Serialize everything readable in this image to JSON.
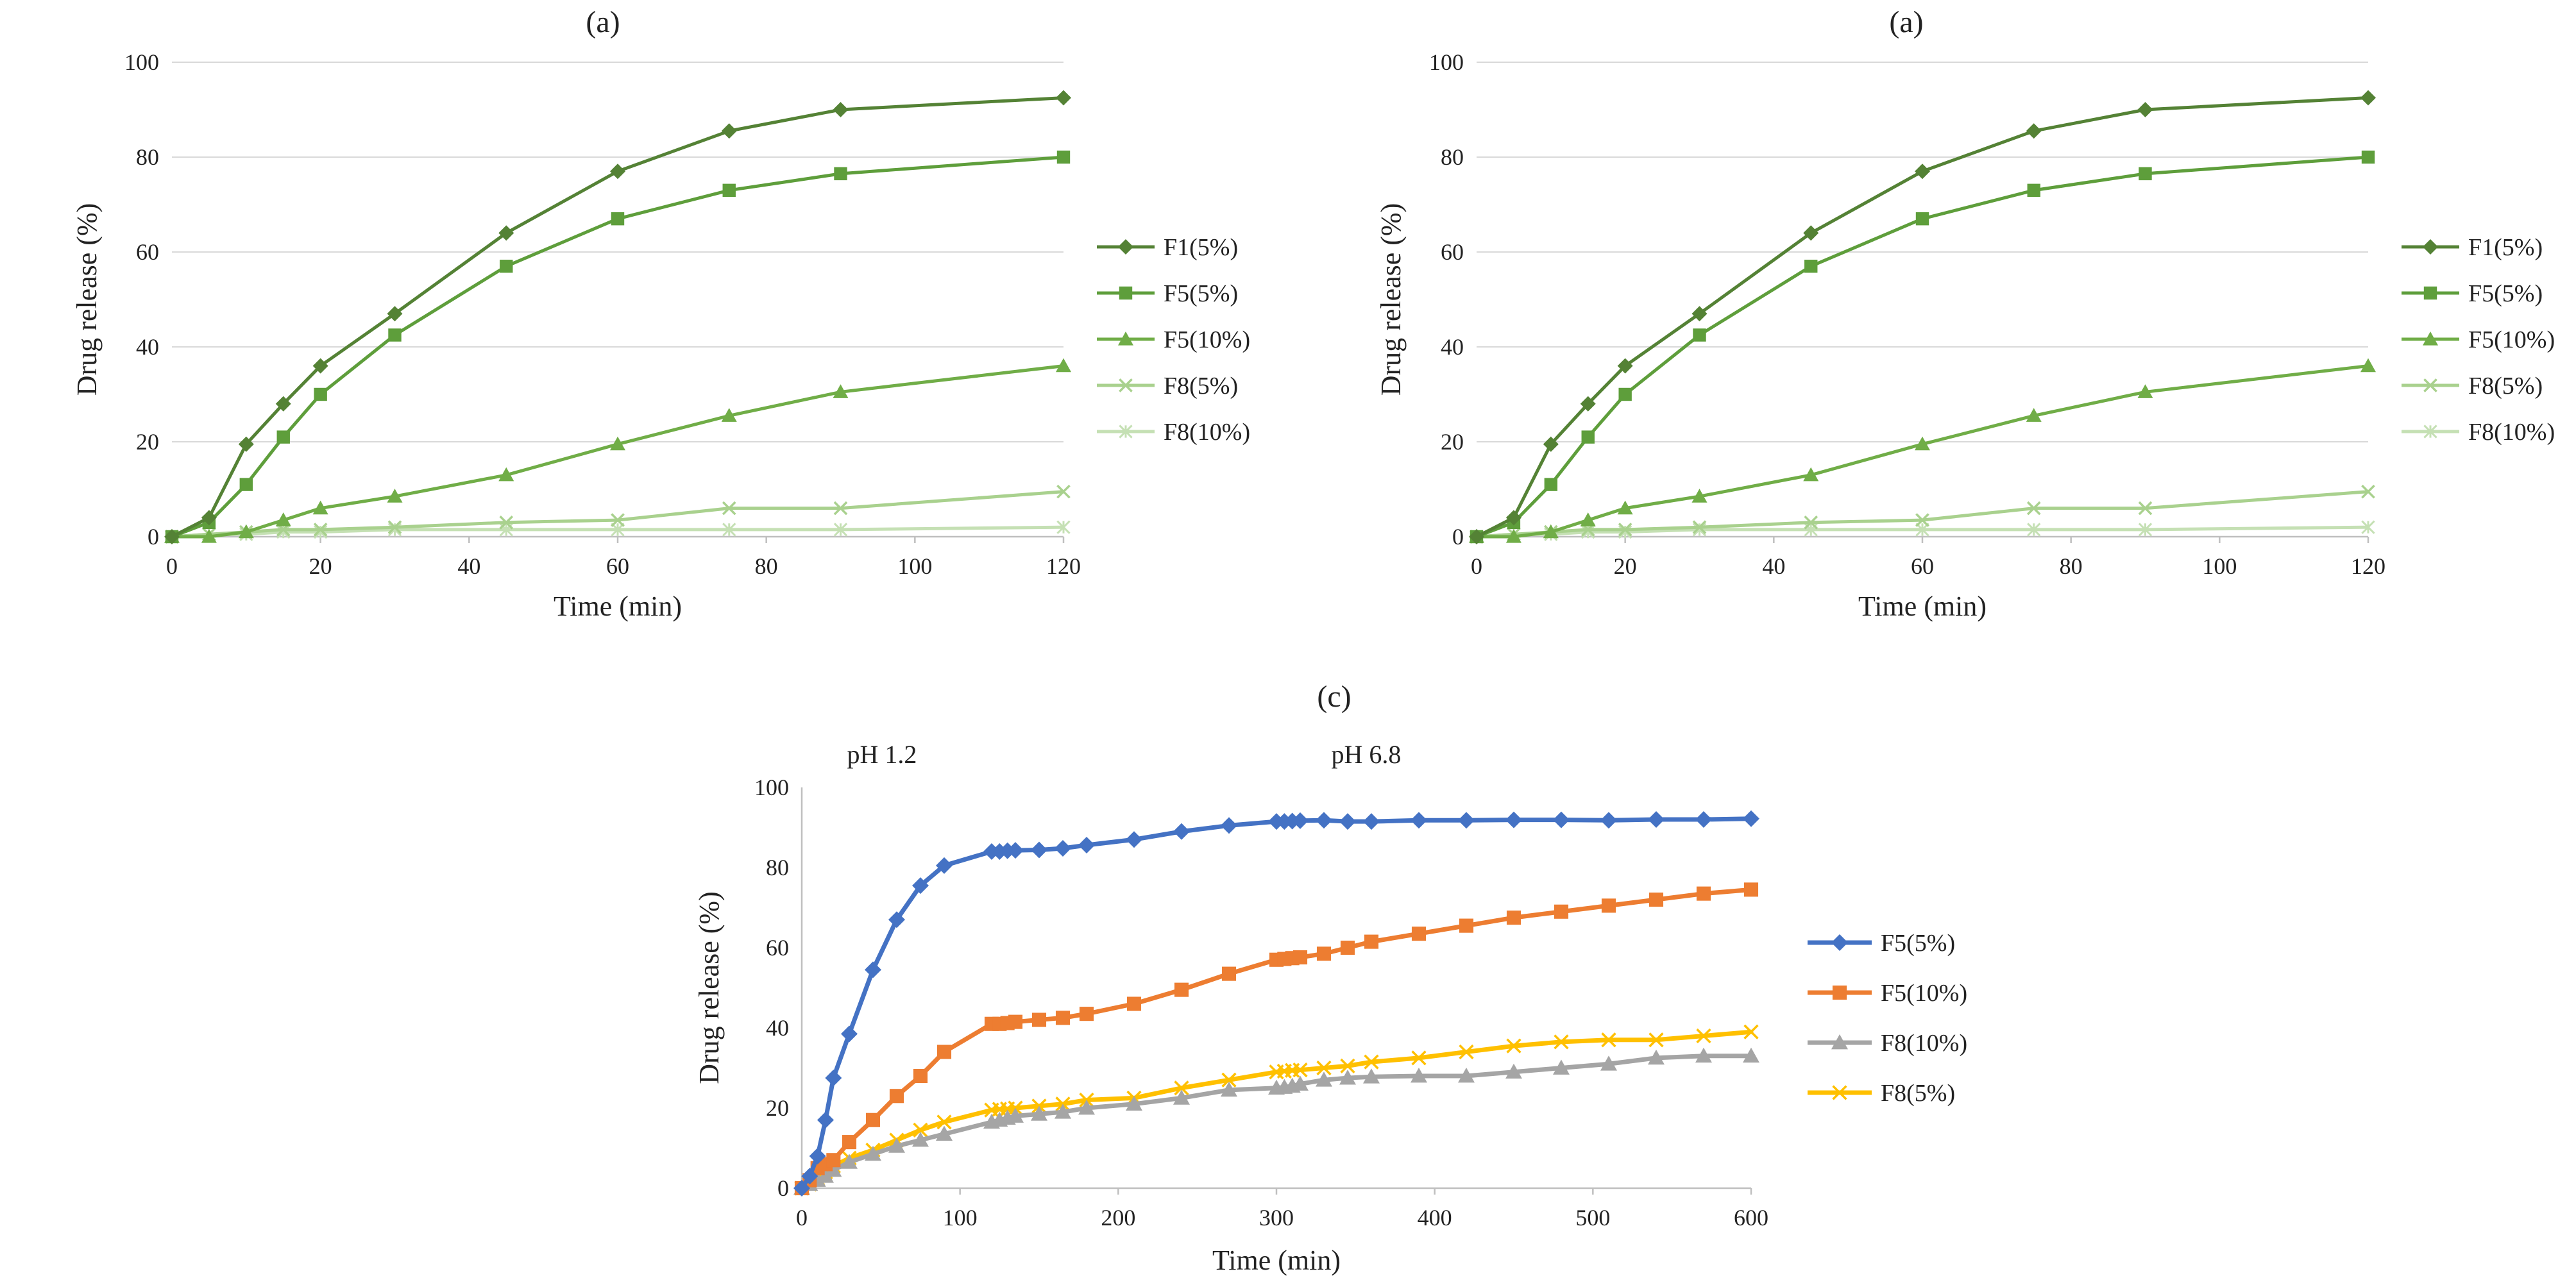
{
  "chart_data": [
    {
      "type": "line",
      "title": "(a)",
      "xlabel": "Time (min)",
      "ylabel": "Drug release (%)",
      "xlim": [
        0,
        120
      ],
      "ylim": [
        0,
        100
      ],
      "xticks": [
        0,
        20,
        40,
        60,
        80,
        100,
        120
      ],
      "yticks": [
        0,
        20,
        40,
        60,
        80,
        100
      ],
      "grid": true,
      "legend": "right",
      "x": [
        0,
        5,
        10,
        15,
        20,
        30,
        45,
        60,
        75,
        90,
        120
      ],
      "series": [
        {
          "name": "F1(5%)",
          "color": "#548235",
          "marker": "diamond",
          "values": [
            0,
            4,
            19.5,
            28,
            36,
            47,
            64,
            77,
            85.5,
            90,
            92.5
          ]
        },
        {
          "name": "F5(5%)",
          "color": "#5e9e3b",
          "marker": "square",
          "values": [
            0,
            3,
            11,
            21,
            30,
            42.5,
            57,
            67,
            73,
            76.5,
            80
          ]
        },
        {
          "name": "F5(10%)",
          "color": "#70ad47",
          "marker": "triangle",
          "values": [
            0,
            0,
            1,
            3.5,
            6,
            8.5,
            13,
            19.5,
            25.5,
            30.5,
            36
          ]
        },
        {
          "name": "F8(5%)",
          "color": "#a9d18e",
          "marker": "x",
          "values": [
            0,
            0.5,
            1,
            1.5,
            1.5,
            2,
            3,
            3.5,
            6,
            6,
            9.5
          ]
        },
        {
          "name": "F8(10%)",
          "color": "#c5e0b4",
          "marker": "star",
          "values": [
            0,
            0.5,
            0.5,
            1,
            1,
            1.5,
            1.5,
            1.5,
            1.5,
            1.5,
            2
          ]
        }
      ]
    },
    {
      "type": "line",
      "title": "(a)",
      "xlabel": "Time (min)",
      "ylabel": "Drug release (%)",
      "xlim": [
        0,
        120
      ],
      "ylim": [
        0,
        100
      ],
      "xticks": [
        0,
        20,
        40,
        60,
        80,
        100,
        120
      ],
      "yticks": [
        0,
        20,
        40,
        60,
        80,
        100
      ],
      "grid": true,
      "legend": "right",
      "x": [
        0,
        5,
        10,
        15,
        20,
        30,
        45,
        60,
        75,
        90,
        120
      ],
      "series": [
        {
          "name": "F1(5%)",
          "color": "#548235",
          "marker": "diamond",
          "values": [
            0,
            4,
            19.5,
            28,
            36,
            47,
            64,
            77,
            85.5,
            90,
            92.5
          ]
        },
        {
          "name": "F5(5%)",
          "color": "#5e9e3b",
          "marker": "square",
          "values": [
            0,
            3,
            11,
            21,
            30,
            42.5,
            57,
            67,
            73,
            76.5,
            80
          ]
        },
        {
          "name": "F5(10%)",
          "color": "#70ad47",
          "marker": "triangle",
          "values": [
            0,
            0,
            1,
            3.5,
            6,
            8.5,
            13,
            19.5,
            25.5,
            30.5,
            36
          ]
        },
        {
          "name": "F8(5%)",
          "color": "#a9d18e",
          "marker": "x",
          "values": [
            0,
            0.5,
            1,
            1.5,
            1.5,
            2,
            3,
            3.5,
            6,
            6,
            9.5
          ]
        },
        {
          "name": "F8(10%)",
          "color": "#c5e0b4",
          "marker": "star",
          "values": [
            0,
            0.5,
            0.5,
            1,
            1,
            1.5,
            1.5,
            1.5,
            1.5,
            1.5,
            2
          ]
        }
      ]
    },
    {
      "type": "line",
      "title": "(c)",
      "xlabel": "Time (min)",
      "ylabel": "Drug release (%)",
      "xlim": [
        0,
        600
      ],
      "ylim": [
        0,
        100
      ],
      "xticks": [
        0,
        100,
        200,
        300,
        400,
        500,
        600
      ],
      "yticks": [
        0,
        20,
        40,
        60,
        80,
        100
      ],
      "grid": false,
      "legend": "right",
      "annotations": [
        "pH 1.2",
        "pH 6.8"
      ],
      "x": [
        0,
        5,
        10,
        15,
        20,
        30,
        45,
        60,
        75,
        90,
        120,
        125,
        130,
        135,
        150,
        165,
        180,
        210,
        240,
        270,
        300,
        305,
        310,
        315,
        330,
        345,
        360,
        390,
        420,
        450,
        480,
        510,
        540,
        570,
        600
      ],
      "series": [
        {
          "name": "F5(5%)",
          "color": "#4472c4",
          "marker": "diamond",
          "values": [
            0,
            3,
            8,
            17,
            27.5,
            38.5,
            54.5,
            67,
            75.5,
            80.5,
            84,
            84,
            84.2,
            84.3,
            84.4,
            84.8,
            85.6,
            87,
            89,
            90.5,
            91.5,
            91.5,
            91.6,
            91.7,
            91.8,
            91.5,
            91.5,
            91.8,
            91.8,
            91.9,
            91.9,
            91.8,
            92,
            92,
            92.2
          ]
        },
        {
          "name": "F5(10%)",
          "color": "#ed7d31",
          "marker": "square",
          "values": [
            0,
            2,
            5,
            6,
            7,
            11.5,
            17,
            23,
            28,
            34,
            41,
            41,
            41.2,
            41.5,
            42,
            42.5,
            43.5,
            46,
            49.5,
            53.5,
            57,
            57.2,
            57.4,
            57.6,
            58.5,
            60,
            61.5,
            63.5,
            65.5,
            67.5,
            69,
            70.5,
            72,
            73.5,
            74.5
          ]
        },
        {
          "name": "F8(10%)",
          "color": "#a5a5a5",
          "marker": "triangle",
          "values": [
            0,
            1,
            2,
            3,
            4.5,
            6.5,
            8.5,
            10.5,
            12,
            13.5,
            16.5,
            17,
            17.5,
            18,
            18.5,
            19,
            20,
            21,
            22.5,
            24.5,
            25,
            25.2,
            25.5,
            26,
            27,
            27.5,
            27.8,
            28,
            28,
            29,
            30,
            31,
            32.5,
            33,
            33
          ]
        },
        {
          "name": "F8(5%)",
          "color": "#ffc000",
          "marker": "x",
          "values": [
            0,
            1,
            2.5,
            4,
            5.5,
            7.5,
            9.5,
            12,
            14.5,
            16.5,
            19.5,
            19.7,
            19.8,
            20,
            20.5,
            21,
            22,
            22.5,
            25,
            27,
            29,
            29.2,
            29.4,
            29.5,
            30,
            30.5,
            31.5,
            32.5,
            34,
            35.5,
            36.5,
            37,
            37,
            38,
            39
          ]
        }
      ]
    }
  ]
}
